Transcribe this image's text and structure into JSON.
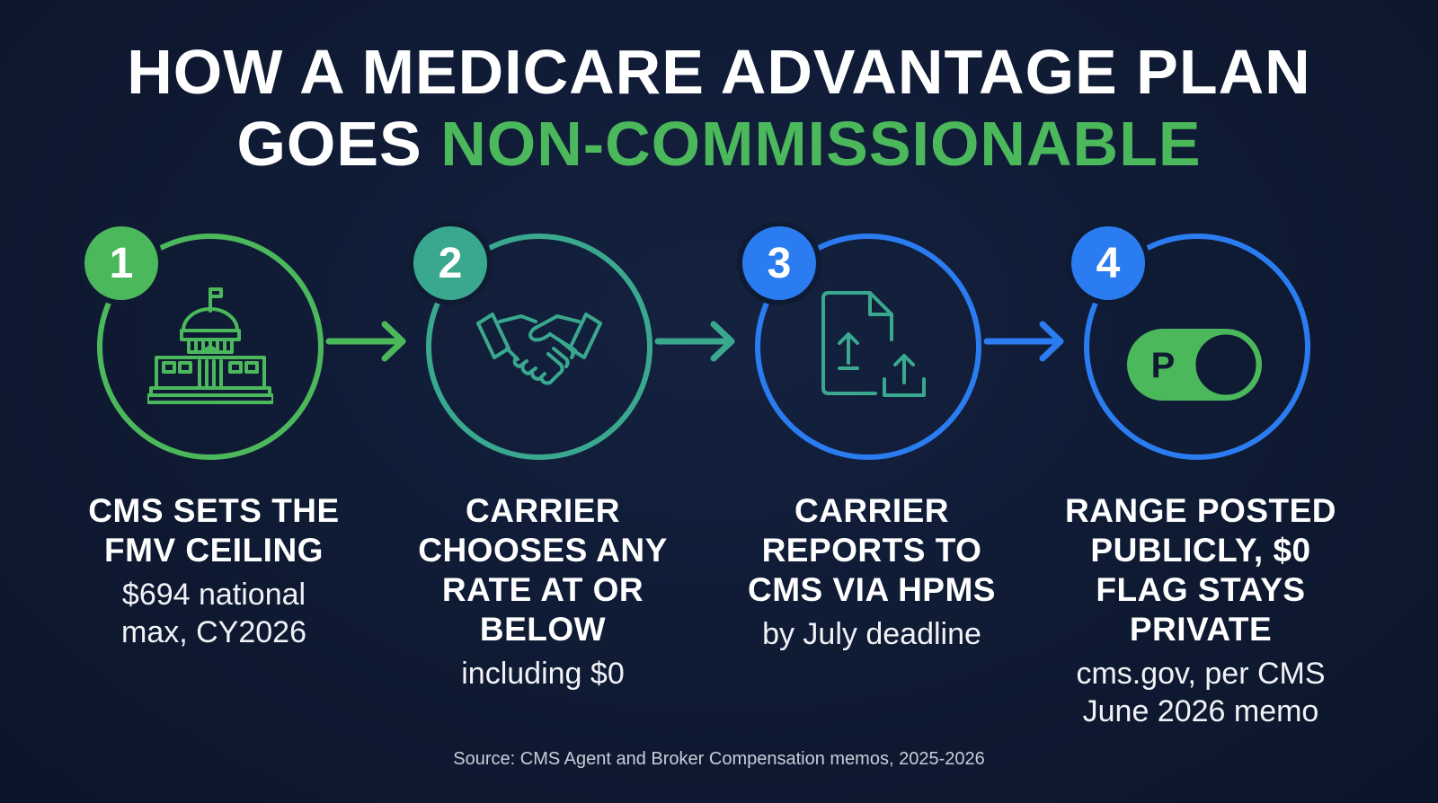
{
  "title": {
    "line1": "HOW A MEDICARE ADVANTAGE PLAN",
    "line2_prefix": "GOES",
    "line2_highlight": "NON-COMMISSIONABLE"
  },
  "colors": {
    "background": "#0f1a33",
    "green": "#4cb85c",
    "teal": "#3aa88e",
    "blue": "#2a7cf0"
  },
  "steps": [
    {
      "number": "1",
      "icon": "capitol-building-icon",
      "title": "CMS SETS THE FMV CEILING",
      "subtitle": "$694 national max, CY2026",
      "color": "#4cb85c"
    },
    {
      "number": "2",
      "icon": "handshake-icon",
      "title": "CARRIER CHOOSES ANY RATE AT OR BELOW",
      "subtitle": "including $0",
      "color": "#3aa88e"
    },
    {
      "number": "3",
      "icon": "document-upload-icon",
      "title": "CARRIER REPORTS TO CMS VIA HPMS",
      "subtitle": "by July deadline",
      "color": "#2a7cf0"
    },
    {
      "number": "4",
      "icon": "privacy-toggle-icon",
      "toggle_letter": "P",
      "title": "RANGE POSTED PUBLICLY, $0 FLAG STAYS PRIVATE",
      "subtitle": "cms.gov, per CMS June 2026 memo",
      "color": "#2a7cf0"
    }
  ],
  "source": "Source: CMS Agent and Broker Compensation memos, 2025-2026"
}
